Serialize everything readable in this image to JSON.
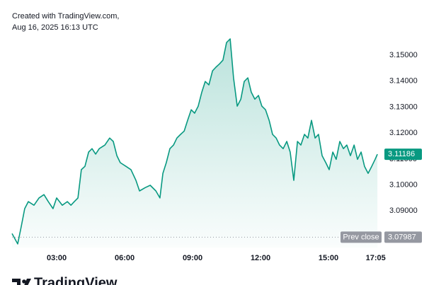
{
  "header": {
    "line1": "Created with TradingView.com,",
    "line2": "Aug 16, 2025 16:13 UTC"
  },
  "footer": {
    "brand": "TradingView"
  },
  "chart_data": {
    "type": "area",
    "x": [
      1.03,
      1.28,
      1.44,
      1.59,
      1.75,
      2.0,
      2.22,
      2.44,
      2.63,
      2.84,
      3.0,
      3.25,
      3.47,
      3.63,
      3.78,
      3.94,
      4.09,
      4.25,
      4.41,
      4.56,
      4.72,
      4.88,
      5.13,
      5.34,
      5.5,
      5.66,
      5.81,
      6.06,
      6.28,
      6.5,
      6.66,
      6.91,
      7.13,
      7.38,
      7.56,
      7.69,
      7.84,
      8.0,
      8.16,
      8.31,
      8.47,
      8.63,
      8.78,
      8.94,
      9.09,
      9.25,
      9.41,
      9.56,
      9.72,
      9.88,
      10.03,
      10.19,
      10.34,
      10.5,
      10.66,
      10.81,
      10.97,
      11.13,
      11.28,
      11.44,
      11.59,
      11.75,
      11.91,
      12.06,
      12.22,
      12.38,
      12.53,
      12.69,
      12.84,
      13.0,
      13.16,
      13.31,
      13.47,
      13.63,
      13.78,
      13.94,
      14.09,
      14.25,
      14.41,
      14.56,
      14.72,
      14.88,
      15.03,
      15.19,
      15.34,
      15.5,
      15.66,
      15.81,
      15.97,
      16.13,
      16.28,
      16.44,
      16.59,
      16.75,
      16.91,
      17.06,
      17.16
    ],
    "values": [
      3.0813,
      3.0773,
      3.0841,
      3.0909,
      3.0936,
      3.0922,
      3.095,
      3.0963,
      3.0936,
      3.0909,
      3.095,
      3.0922,
      3.0936,
      3.0922,
      3.0936,
      3.095,
      3.1059,
      3.1072,
      3.1127,
      3.114,
      3.1119,
      3.114,
      3.1154,
      3.1181,
      3.1168,
      3.1113,
      3.1086,
      3.1072,
      3.1059,
      3.1018,
      3.0977,
      3.099,
      3.0999,
      3.0977,
      3.095,
      3.1045,
      3.1086,
      3.114,
      3.1154,
      3.1181,
      3.1195,
      3.1208,
      3.1249,
      3.129,
      3.1277,
      3.1304,
      3.1358,
      3.1399,
      3.1386,
      3.144,
      3.1454,
      3.1467,
      3.1481,
      3.1549,
      3.1563,
      3.1413,
      3.1304,
      3.1331,
      3.1399,
      3.1413,
      3.1358,
      3.1331,
      3.1345,
      3.1304,
      3.129,
      3.1249,
      3.1195,
      3.1181,
      3.1154,
      3.114,
      3.1168,
      3.1127,
      3.1018,
      3.1168,
      3.1154,
      3.1195,
      3.1181,
      3.1249,
      3.1181,
      3.1195,
      3.1113,
      3.1086,
      3.1059,
      3.1127,
      3.1099,
      3.1168,
      3.114,
      3.1154,
      3.1113,
      3.1154,
      3.1099,
      3.1127,
      3.1072,
      3.1045,
      3.1072,
      3.1099,
      3.11186
    ],
    "last_label": "3.11186",
    "prev_close": 3.07987,
    "prev_close_label": "3.07987",
    "prev_close_text": "Prev close",
    "color": "#089981",
    "xlim": [
      1.03,
      17.375
    ],
    "xticks": [
      {
        "value": 3,
        "label": "03:00"
      },
      {
        "value": 6,
        "label": "06:00"
      },
      {
        "value": 9,
        "label": "09:00"
      },
      {
        "value": 12,
        "label": "12:00"
      },
      {
        "value": 15,
        "label": "15:00"
      },
      {
        "value": 17.0833,
        "label": "17:05"
      }
    ],
    "ylim": [
      3.0759,
      3.1604
    ],
    "yticks": [
      {
        "value": 3.09,
        "label": "3.09000"
      },
      {
        "value": 3.1,
        "label": "3.10000"
      },
      {
        "value": 3.11,
        "label": "3.11000"
      },
      {
        "value": 3.12,
        "label": "3.12000"
      },
      {
        "value": 3.13,
        "label": "3.13000"
      },
      {
        "value": 3.14,
        "label": "3.14000"
      },
      {
        "value": 3.15,
        "label": "3.15000"
      }
    ]
  }
}
